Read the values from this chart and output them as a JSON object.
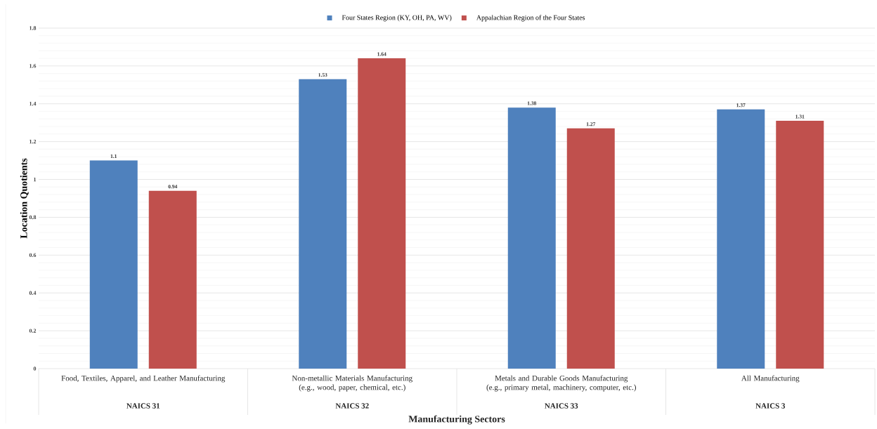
{
  "chart_data": {
    "type": "bar",
    "xlabel": "Manufacturing Sectors",
    "ylabel": "Location Quotients",
    "categories": [
      "Food, Textiles, Apparel, and Leather Manufacturing",
      "Non-metallic Materials Manufacturing (e.g., wood, paper, chemical, etc.)",
      "Metals and Durable Goods Manufacturing (e.g., primary metal, machinery, computer, etc.)",
      "All Manufacturing"
    ],
    "annotations": [
      "NAICS 31",
      "NAICS 32",
      "NAICS 33",
      "NAICS 3"
    ],
    "series": [
      {
        "name": "Four States Region (KY, OH, PA, WV)",
        "color": "#4f81bd",
        "values": [
          1.1,
          1.53,
          1.38,
          1.37
        ]
      },
      {
        "name": "Appalachian Region of the Four States",
        "color": "#c0504d",
        "values": [
          0.94,
          1.64,
          1.27,
          1.31
        ]
      }
    ],
    "ylim": [
      0,
      1.8
    ],
    "yticks": [
      0,
      0.2,
      0.4,
      0.6,
      0.8,
      1,
      1.2,
      1.4,
      1.6,
      1.8
    ],
    "grid": "y",
    "legend": "top",
    "data_labels": true
  }
}
